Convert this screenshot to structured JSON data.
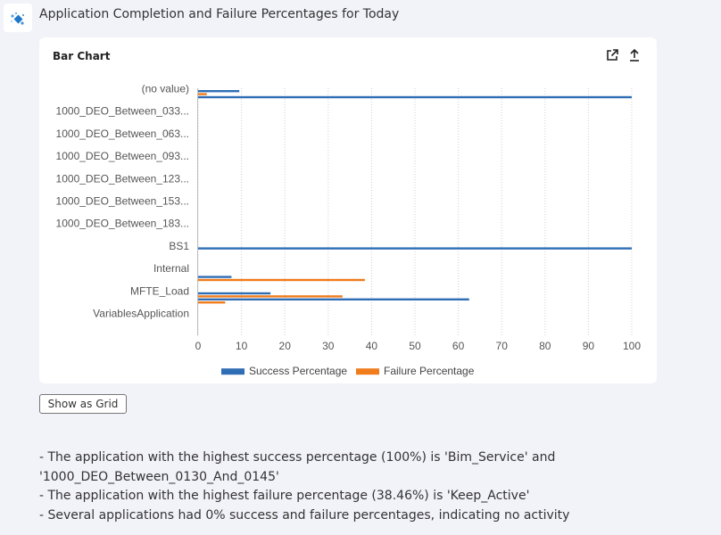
{
  "header": {
    "title": "Application Completion and Failure Percentages for Today"
  },
  "card": {
    "title": "Bar Chart",
    "icons": {
      "expand": "external-link-icon",
      "export": "upload-icon"
    }
  },
  "chart_data": {
    "type": "bar",
    "orientation": "horizontal",
    "categories": [
      "(no value)",
      "1000_DEO_Between_033...",
      "1000_DEO_Between_063...",
      "1000_DEO_Between_093...",
      "1000_DEO_Between_123...",
      "1000_DEO_Between_153...",
      "1000_DEO_Between_183...",
      "BS1",
      "Internal",
      "MFTE_Load",
      "VariablesApplication"
    ],
    "x_ticks": [
      "0",
      "10",
      "20",
      "30",
      "40",
      "50",
      "60",
      "70",
      "80",
      "90",
      "100"
    ],
    "xlim": [
      0,
      100
    ],
    "grid": true,
    "legend_position": "bottom",
    "series": [
      {
        "name": "Success Percentage",
        "color": "#2f6eb5"
      },
      {
        "name": "Failure Percentage",
        "color": "#f07c1c"
      }
    ],
    "bars": [
      {
        "row": 0,
        "offset": 0,
        "series": 0,
        "value": 9.5
      },
      {
        "row": 0,
        "offset": 1,
        "series": 1,
        "value": 2
      },
      {
        "row": 0,
        "offset": 2,
        "series": 0,
        "value": 100
      },
      {
        "row": 0,
        "offset": 3,
        "series": 1,
        "value": 0
      },
      {
        "row": 7,
        "offset": 0,
        "series": 0,
        "value": 100
      },
      {
        "row": 7,
        "offset": 1,
        "series": 1,
        "value": 0
      },
      {
        "row": 8,
        "offset": 2,
        "series": 0,
        "value": 7.7
      },
      {
        "row": 8,
        "offset": 3,
        "series": 1,
        "value": 38.46
      },
      {
        "row": 9,
        "offset": 0,
        "series": 0,
        "value": 16.7
      },
      {
        "row": 9,
        "offset": 1,
        "series": 1,
        "value": 33.3
      },
      {
        "row": 9,
        "offset": 2,
        "series": 0,
        "value": 62.5
      },
      {
        "row": 9,
        "offset": 3,
        "series": 1,
        "value": 6.25
      }
    ]
  },
  "actions": {
    "show_grid_label": "Show as Grid"
  },
  "summary": {
    "lines": [
      "- The application with the highest success percentage (100%) is 'Bim_Service' and",
      "'1000_DEO_Between_0130_And_0145'",
      "- The application with the highest failure percentage (38.46%) is 'Keep_Active'",
      "- Several applications had 0% success and failure percentages, indicating no activity"
    ]
  }
}
